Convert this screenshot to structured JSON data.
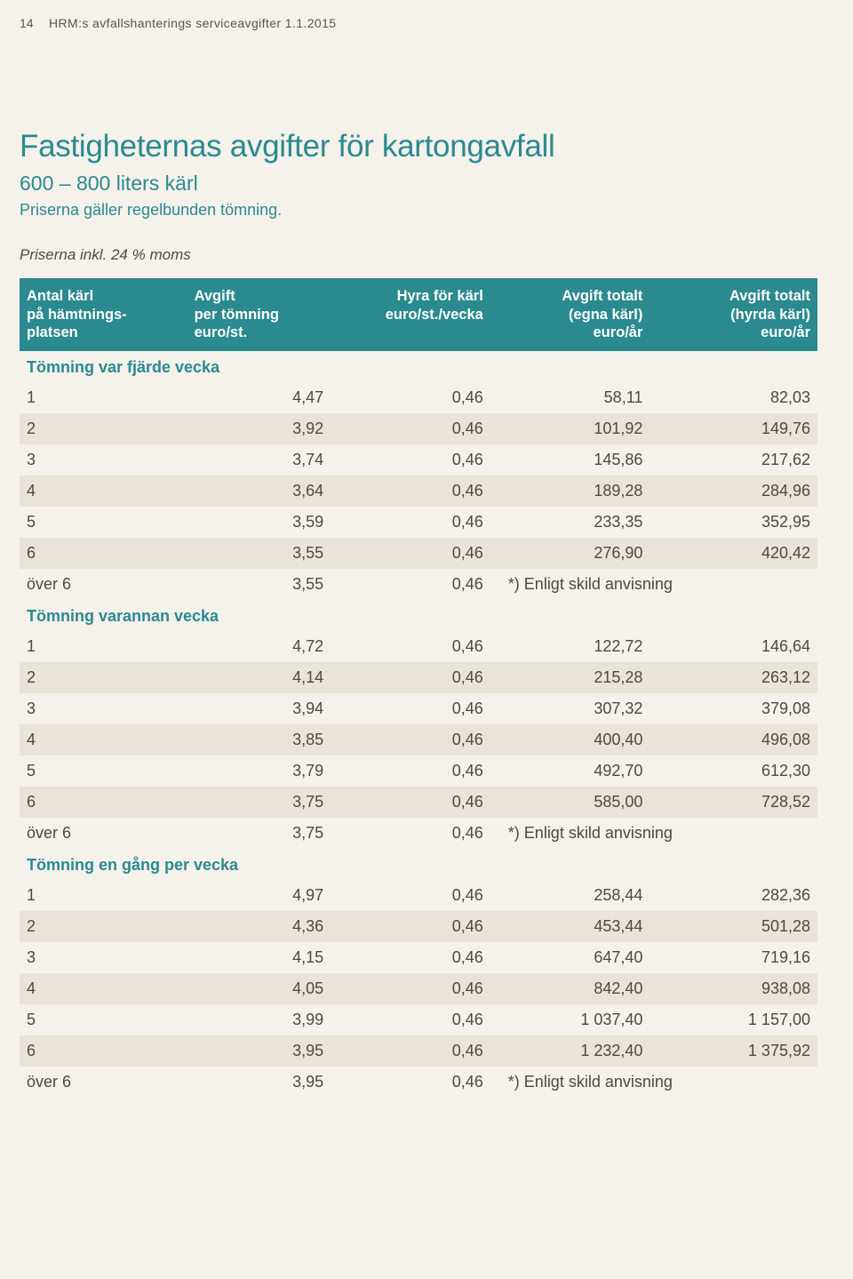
{
  "page_number": "14",
  "header": "HRM:s avfallshanterings serviceavgifter 1.1.2015",
  "title": "Fastigheternas avgifter för kartongavfall",
  "subtitle": "600 – 800 liters kärl",
  "subtitle2": "Priserna gäller regelbunden tömning.",
  "note": "Priserna inkl. 24 % moms",
  "columns": {
    "c1": "Antal kärl\npå hämtnings-\nplatsen",
    "c2": "Avgift\nper tömning\neuro/st.",
    "c3": "Hyra för kärl\neuro/st./vecka",
    "c4": "Avgift totalt\n(egna kärl)\neuro/år",
    "c5": "Avgift totalt\n(hyrda kärl)\neuro/år"
  },
  "sections": [
    {
      "label": "Tömning var fjärde vecka",
      "rows": [
        {
          "a": "1",
          "b": "4,47",
          "c": "0,46",
          "d": "58,11",
          "e": "82,03"
        },
        {
          "a": "2",
          "b": "3,92",
          "c": "0,46",
          "d": "101,92",
          "e": "149,76"
        },
        {
          "a": "3",
          "b": "3,74",
          "c": "0,46",
          "d": "145,86",
          "e": "217,62"
        },
        {
          "a": "4",
          "b": "3,64",
          "c": "0,46",
          "d": "189,28",
          "e": "284,96"
        },
        {
          "a": "5",
          "b": "3,59",
          "c": "0,46",
          "d": "233,35",
          "e": "352,95"
        },
        {
          "a": "6",
          "b": "3,55",
          "c": "0,46",
          "d": "276,90",
          "e": "420,42"
        },
        {
          "a": "över 6",
          "b": "3,55",
          "c": "0,46",
          "merged": "*) Enligt skild anvisning"
        }
      ]
    },
    {
      "label": "Tömning varannan vecka",
      "rows": [
        {
          "a": "1",
          "b": "4,72",
          "c": "0,46",
          "d": "122,72",
          "e": "146,64"
        },
        {
          "a": "2",
          "b": "4,14",
          "c": "0,46",
          "d": "215,28",
          "e": "263,12"
        },
        {
          "a": "3",
          "b": "3,94",
          "c": "0,46",
          "d": "307,32",
          "e": "379,08"
        },
        {
          "a": "4",
          "b": "3,85",
          "c": "0,46",
          "d": "400,40",
          "e": "496,08"
        },
        {
          "a": "5",
          "b": "3,79",
          "c": "0,46",
          "d": "492,70",
          "e": "612,30"
        },
        {
          "a": "6",
          "b": "3,75",
          "c": "0,46",
          "d": "585,00",
          "e": "728,52"
        },
        {
          "a": "över 6",
          "b": "3,75",
          "c": "0,46",
          "merged": "*) Enligt skild anvisning"
        }
      ]
    },
    {
      "label": "Tömning en gång per vecka",
      "rows": [
        {
          "a": "1",
          "b": "4,97",
          "c": "0,46",
          "d": "258,44",
          "e": "282,36"
        },
        {
          "a": "2",
          "b": "4,36",
          "c": "0,46",
          "d": "453,44",
          "e": "501,28"
        },
        {
          "a": "3",
          "b": "4,15",
          "c": "0,46",
          "d": "647,40",
          "e": "719,16"
        },
        {
          "a": "4",
          "b": "4,05",
          "c": "0,46",
          "d": "842,40",
          "e": "938,08"
        },
        {
          "a": "5",
          "b": "3,99",
          "c": "0,46",
          "d": "1 037,40",
          "e": "1 157,00"
        },
        {
          "a": "6",
          "b": "3,95",
          "c": "0,46",
          "d": "1 232,40",
          "e": "1 375,92"
        },
        {
          "a": "över 6",
          "b": "3,95",
          "c": "0,46",
          "merged": "*) Enligt skild anvisning"
        }
      ]
    }
  ],
  "colors": {
    "teal": "#2a8a8f",
    "page_bg": "#f5f1eb",
    "alt_row_bg": "#eae3d7",
    "body_text": "#4e4a42"
  }
}
